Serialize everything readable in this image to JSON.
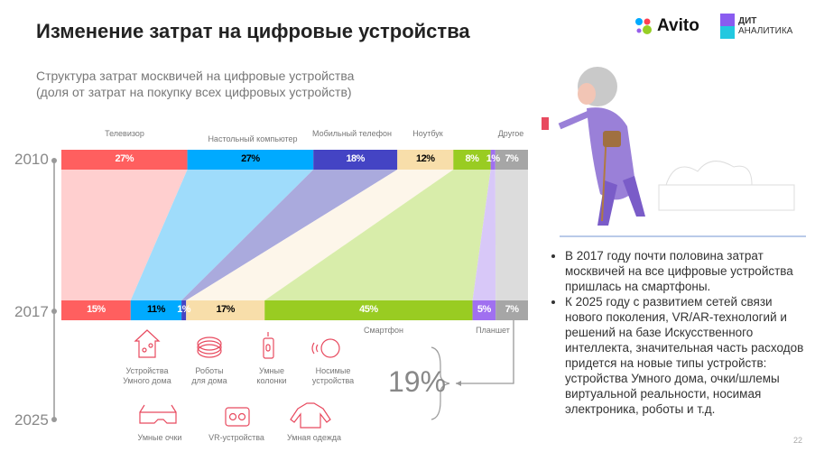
{
  "title": "Изменение затрат на цифровые устройства",
  "logos": {
    "avito": "Avito",
    "dit_line1": "ДИТ",
    "dit_line2": "АНАЛИТИКА"
  },
  "subtitle_line1": "Структура затрат москвичей на цифровые устройства",
  "subtitle_line2": "(доля от затрат на покупку всех цифровых устройств)",
  "chart_data": {
    "type": "bar",
    "subtype": "stacked-100-with-flow",
    "title": "Структура затрат москвичей на цифровые устройства",
    "categories": [
      "2010",
      "2017"
    ],
    "series": [
      {
        "name": "Телевизор",
        "values": [
          27,
          15
        ],
        "color": "#ff5f5f",
        "band": "#ffcfcf",
        "text": "#fff"
      },
      {
        "name": "Настольный компьютер",
        "values": [
          27,
          11
        ],
        "color": "#00aaff",
        "band": "#9fdcfb",
        "text": "#000"
      },
      {
        "name": "Мобильный телефон",
        "values": [
          18,
          1
        ],
        "color": "#4444c4",
        "band": "#aaaadd",
        "text": "#fff"
      },
      {
        "name": "Ноутбук",
        "values": [
          12,
          17
        ],
        "color": "#f8deaa",
        "band": "#fdf6ea",
        "text": "#000"
      },
      {
        "name": "Смартфон",
        "values": [
          8,
          45
        ],
        "color": "#99cc22",
        "band": "#d8edaa",
        "text": "#fff"
      },
      {
        "name": "Планшет",
        "values": [
          1,
          5
        ],
        "color": "#a070f0",
        "band": "#d8c8f8",
        "text": "#fff"
      },
      {
        "name": "Другое",
        "values": [
          7,
          7
        ],
        "color": "#a6a6a6",
        "band": "#dcdcdc",
        "text": "#fff"
      }
    ],
    "value_labels": {
      "2010": [
        "27%",
        "27%",
        "18%",
        "12%",
        "8%",
        "1%",
        "7%"
      ],
      "2017": [
        "15%",
        "11%",
        "1%",
        "17%",
        "45%",
        "5%",
        "7%"
      ]
    },
    "timeline": [
      "2010",
      "2017",
      "2025"
    ],
    "forecast_2025": "19%"
  },
  "new_devices": [
    {
      "label": "Устройства\nУмного дома",
      "icon": "smart-home-icon"
    },
    {
      "label": "Роботы\nдля дома",
      "icon": "robot-vacuum-icon"
    },
    {
      "label": "Умные\nколонки",
      "icon": "smart-speaker-icon"
    },
    {
      "label": "Носимые\nустройства",
      "icon": "wearable-icon"
    },
    {
      "label": "Умные очки",
      "icon": "smart-glasses-icon"
    },
    {
      "label": "VR-устройства",
      "icon": "vr-headset-icon"
    },
    {
      "label": "Умная одежда",
      "icon": "smart-clothing-icon"
    }
  ],
  "bullets": [
    "В 2017 году почти половина затрат москвичей на все цифровые устройства пришлась на смартфоны.",
    "К 2025 году с развитием сетей связи нового поколения, VR/AR-технологий и решений на базе Искусственного интеллекта, значительная часть расходов придется на новые типы устройств: устройства Умного дома, очки/шлемы виртуальной реальности, носимая электроника, роботы и т.д."
  ],
  "page_number": "22"
}
